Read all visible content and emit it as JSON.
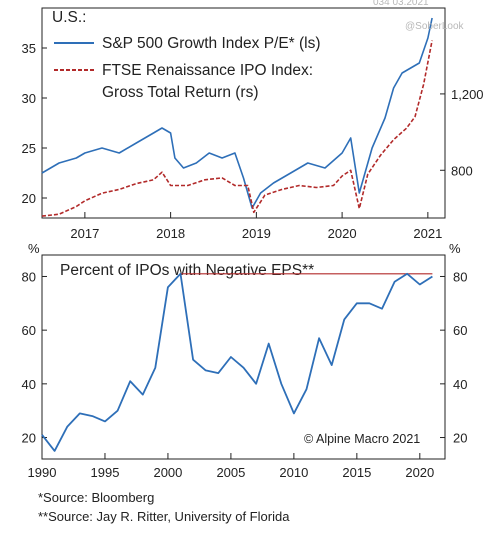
{
  "top_chart": {
    "region_label": "U.S.:",
    "watermark": "@SoberLook",
    "top_cut_text": "034 03.2021",
    "x_ticks": [
      "2017",
      "2018",
      "2019",
      "2020",
      "2021"
    ],
    "left_ticks": [
      20,
      25,
      30,
      35
    ],
    "right_ticks": [
      "800",
      "1,200"
    ],
    "legend": [
      {
        "label_line1": "S&P 500 Growth Index P/E* (ls)",
        "label_line2": "",
        "color": "#2e6fb8",
        "style": "solid"
      },
      {
        "label_line1": "FTSE Renaissance IPO Index:",
        "label_line2": "Gross Total Return (rs)",
        "color": "#b22a2a",
        "style": "dashed"
      }
    ]
  },
  "bottom_chart": {
    "title": "Percent of IPOs with Negative EPS**",
    "left_unit": "%",
    "right_unit": "%",
    "copyright": "© Alpine Macro 2021",
    "y_ticks": [
      20,
      40,
      60,
      80
    ],
    "x_ticks": [
      "1990",
      "1995",
      "2000",
      "2005",
      "2010",
      "2015",
      "2020"
    ],
    "reference_line_color": "#b22a2a"
  },
  "footnotes": {
    "source1": "*Source: Bloomberg",
    "source2": "**Source: Jay R. Ritter, University of Florida"
  },
  "chart_data": [
    {
      "type": "line",
      "title": "",
      "x_range": [
        2016.5,
        2021.2
      ],
      "ylim_left": [
        18,
        39
      ],
      "ylim_right": [
        550,
        1650
      ],
      "grid": false,
      "legend_placement": "top-left",
      "series": [
        {
          "name": "S&P 500 Growth Index P/E* (ls)",
          "axis": "left",
          "color": "#2e6fb8",
          "x": [
            2016.5,
            2016.7,
            2016.9,
            2017.0,
            2017.2,
            2017.4,
            2017.6,
            2017.8,
            2017.9,
            2018.0,
            2018.05,
            2018.15,
            2018.3,
            2018.45,
            2018.6,
            2018.75,
            2018.85,
            2018.95,
            2019.05,
            2019.2,
            2019.4,
            2019.6,
            2019.8,
            2020.0,
            2020.1,
            2020.2,
            2020.35,
            2020.5,
            2020.6,
            2020.7,
            2020.8,
            2020.9,
            2021.0,
            2021.05
          ],
          "y": [
            22.5,
            23.5,
            24.0,
            24.5,
            25.0,
            24.5,
            25.5,
            26.5,
            27.0,
            26.5,
            24.0,
            23.0,
            23.5,
            24.5,
            24.0,
            24.5,
            22.0,
            19.0,
            20.5,
            21.5,
            22.5,
            23.5,
            23.0,
            24.5,
            26.0,
            20.5,
            25.0,
            28.0,
            31.0,
            32.5,
            33.0,
            33.5,
            36.0,
            38.0
          ]
        },
        {
          "name": "FTSE Renaissance IPO Index: Gross Total Return (rs)",
          "axis": "right",
          "color": "#b22a2a",
          "x": [
            2016.5,
            2016.7,
            2016.9,
            2017.0,
            2017.2,
            2017.4,
            2017.6,
            2017.8,
            2017.9,
            2018.0,
            2018.2,
            2018.4,
            2018.6,
            2018.75,
            2018.9,
            2018.97,
            2019.1,
            2019.3,
            2019.5,
            2019.7,
            2019.9,
            2020.0,
            2020.1,
            2020.2,
            2020.3,
            2020.45,
            2020.6,
            2020.75,
            2020.85,
            2020.95,
            2021.05
          ],
          "y": [
            560,
            570,
            610,
            640,
            680,
            700,
            730,
            750,
            790,
            720,
            720,
            750,
            760,
            720,
            720,
            580,
            670,
            700,
            720,
            710,
            720,
            770,
            800,
            600,
            780,
            880,
            960,
            1020,
            1080,
            1250,
            1480
          ]
        }
      ]
    },
    {
      "type": "line",
      "title": "Percent of IPOs with Negative EPS**",
      "x_range": [
        1990,
        2022
      ],
      "ylim": [
        12,
        88
      ],
      "grid": false,
      "series": [
        {
          "name": "",
          "color": "#2e6fb8",
          "x": [
            1990,
            1991,
            1992,
            1993,
            1994,
            1995,
            1996,
            1997,
            1998,
            1999,
            2000,
            2001,
            2002,
            2003,
            2004,
            2005,
            2006,
            2007,
            2008,
            2009,
            2010,
            2011,
            2012,
            2013,
            2014,
            2015,
            2016,
            2017,
            2018,
            2019,
            2020,
            2021
          ],
          "y": [
            21,
            15,
            24,
            29,
            28,
            26,
            30,
            41,
            36,
            46,
            76,
            81,
            49,
            45,
            44,
            50,
            46,
            40,
            55,
            40,
            29,
            38,
            57,
            47,
            64,
            70,
            70,
            68,
            78,
            81,
            77,
            80
          ]
        },
        {
          "name": "",
          "color": "#b22a2a",
          "x": [
            2001,
            2021
          ],
          "y": [
            81,
            81
          ]
        }
      ]
    }
  ]
}
